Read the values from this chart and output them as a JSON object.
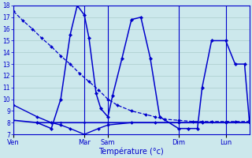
{
  "title": "Température (°c)",
  "background_color": "#cce8ec",
  "grid_color": "#aacccc",
  "line_color": "#0000cc",
  "ylim": [
    7,
    18
  ],
  "yticks": [
    7,
    8,
    9,
    10,
    11,
    12,
    13,
    14,
    15,
    16,
    17,
    18
  ],
  "xlim": [
    0,
    5
  ],
  "day_labels": [
    "Ven",
    "Mar",
    "Sam",
    "Dim",
    "Lun"
  ],
  "day_positions": [
    0,
    1.5,
    2.0,
    3.5,
    4.5
  ],
  "vline_positions": [
    0,
    1.5,
    2.0,
    3.5,
    4.5
  ],
  "series": [
    {
      "x": [
        0.0,
        0.2,
        0.4,
        0.6,
        0.8,
        1.0,
        1.2,
        1.4,
        1.6,
        1.8,
        2.0,
        2.2,
        2.5,
        2.8,
        3.0,
        3.2,
        3.5,
        3.8,
        4.0,
        4.2,
        4.5,
        4.7,
        5.0
      ],
      "y": [
        17.5,
        16.7,
        16.0,
        15.2,
        14.5,
        13.7,
        13.0,
        12.2,
        11.5,
        10.8,
        10.0,
        9.5,
        9.0,
        8.7,
        8.5,
        8.3,
        8.2,
        8.1,
        8.1,
        8.1,
        8.1,
        8.1,
        8.1
      ],
      "linestyle": "--",
      "linewidth": 0.9,
      "markersize": 2.0
    },
    {
      "x": [
        0.0,
        0.5,
        0.8,
        1.0,
        1.2,
        1.5,
        1.8,
        2.0,
        2.5,
        3.0,
        3.5,
        4.0,
        4.5,
        5.0
      ],
      "y": [
        9.5,
        8.5,
        8.0,
        7.8,
        7.5,
        7.0,
        7.5,
        7.8,
        8.0,
        8.0,
        8.0,
        8.0,
        8.0,
        8.0
      ],
      "linestyle": "-",
      "linewidth": 1.0,
      "markersize": 2.0
    },
    {
      "x": [
        0.5,
        0.8,
        1.0,
        1.2,
        1.35,
        1.5,
        1.6,
        1.75,
        1.85,
        2.0,
        2.1,
        2.3,
        2.5,
        2.7,
        2.9,
        3.1,
        3.5,
        3.7,
        3.9,
        4.0,
        4.2,
        4.5,
        4.7,
        4.9,
        5.0
      ],
      "y": [
        8.0,
        7.5,
        10.0,
        15.5,
        18.0,
        17.2,
        15.2,
        10.5,
        9.2,
        8.5,
        10.3,
        13.5,
        16.8,
        17.0,
        13.5,
        8.5,
        7.5,
        7.5,
        7.5,
        11.0,
        15.0,
        15.0,
        13.0,
        13.0,
        8.2
      ],
      "linestyle": "-",
      "linewidth": 1.1,
      "markersize": 2.2
    },
    {
      "x": [
        0.0,
        0.5,
        1.0,
        1.5,
        2.0,
        2.5,
        3.0,
        3.5,
        4.0,
        4.5,
        5.0
      ],
      "y": [
        8.2,
        8.0,
        8.0,
        8.0,
        8.0,
        8.0,
        8.0,
        8.0,
        8.0,
        8.0,
        8.0
      ],
      "linestyle": "-",
      "linewidth": 1.2,
      "markersize": 1.5
    }
  ]
}
